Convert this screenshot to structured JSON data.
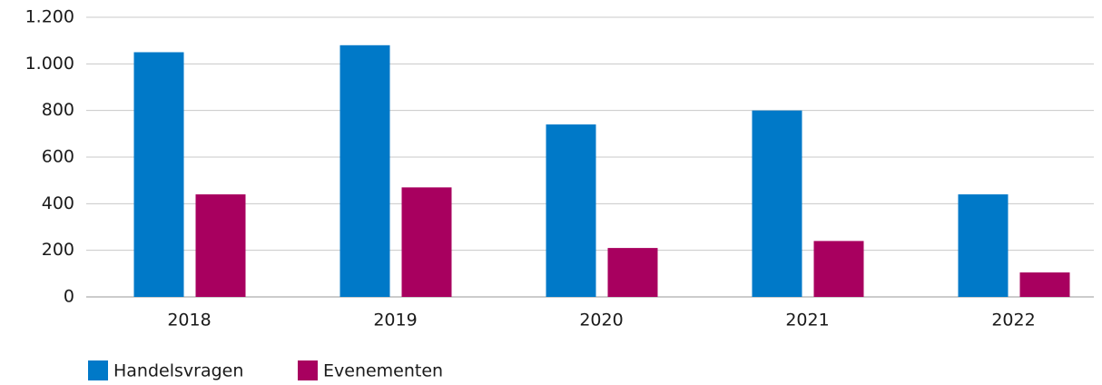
{
  "chart_data": {
    "type": "bar",
    "categories": [
      "2018",
      "2019",
      "2020",
      "2021",
      "2022"
    ],
    "series": [
      {
        "name": "Handelsvragen",
        "color": "#0079c8",
        "values": [
          1050,
          1080,
          740,
          800,
          440
        ]
      },
      {
        "name": "Evenementen",
        "color": "#a8005f",
        "values": [
          440,
          470,
          210,
          240,
          105
        ]
      }
    ],
    "ylim": [
      0,
      1200
    ],
    "yticks": [
      0,
      200,
      400,
      600,
      800,
      {
        "value": 1000,
        "label": "1.000"
      },
      {
        "value": 1200,
        "label": "1.200"
      }
    ],
    "grid": true,
    "legend": "bottom-left"
  }
}
